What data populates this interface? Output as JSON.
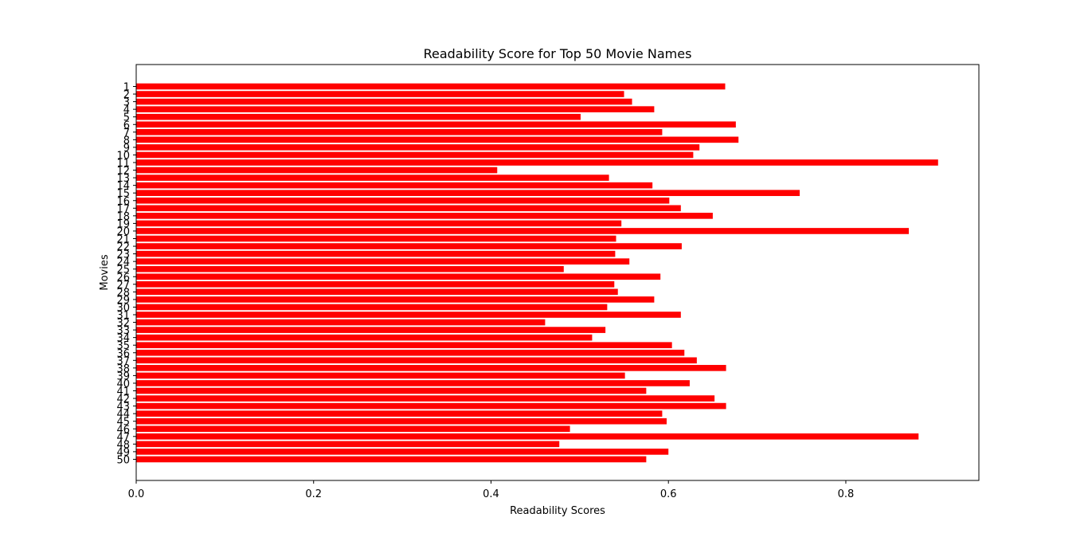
{
  "chart_data": {
    "type": "bar",
    "orientation": "horizontal",
    "title": "Readability Score for Top 50 Movie Names",
    "xlabel": "Readability Scores",
    "ylabel": "Movies",
    "categories": [
      "1",
      "2",
      "3",
      "4",
      "5",
      "6",
      "7",
      "8",
      "9",
      "10",
      "11",
      "12",
      "13",
      "14",
      "15",
      "16",
      "17",
      "18",
      "19",
      "20",
      "21",
      "22",
      "23",
      "24",
      "25",
      "26",
      "27",
      "28",
      "29",
      "30",
      "31",
      "32",
      "33",
      "34",
      "35",
      "36",
      "37",
      "38",
      "39",
      "40",
      "41",
      "42",
      "43",
      "44",
      "45",
      "46",
      "47",
      "48",
      "49",
      "50"
    ],
    "values": [
      0.664,
      0.55,
      0.559,
      0.584,
      0.501,
      0.676,
      0.593,
      0.679,
      0.635,
      0.628,
      0.904,
      0.407,
      0.533,
      0.582,
      0.748,
      0.601,
      0.614,
      0.65,
      0.547,
      0.871,
      0.541,
      0.615,
      0.54,
      0.556,
      0.482,
      0.591,
      0.539,
      0.543,
      0.584,
      0.531,
      0.614,
      0.461,
      0.529,
      0.514,
      0.604,
      0.618,
      0.632,
      0.665,
      0.551,
      0.624,
      0.575,
      0.652,
      0.665,
      0.593,
      0.598,
      0.489,
      0.882,
      0.477,
      0.6,
      0.575
    ],
    "bar_color": "#ff0000",
    "xlim": [
      0.0,
      0.95
    ],
    "xticks": [
      0.0,
      0.2,
      0.4,
      0.6,
      0.8
    ],
    "xtick_labels": [
      "0.0",
      "0.2",
      "0.4",
      "0.6",
      "0.8"
    ],
    "grid": false,
    "legend": "none"
  }
}
